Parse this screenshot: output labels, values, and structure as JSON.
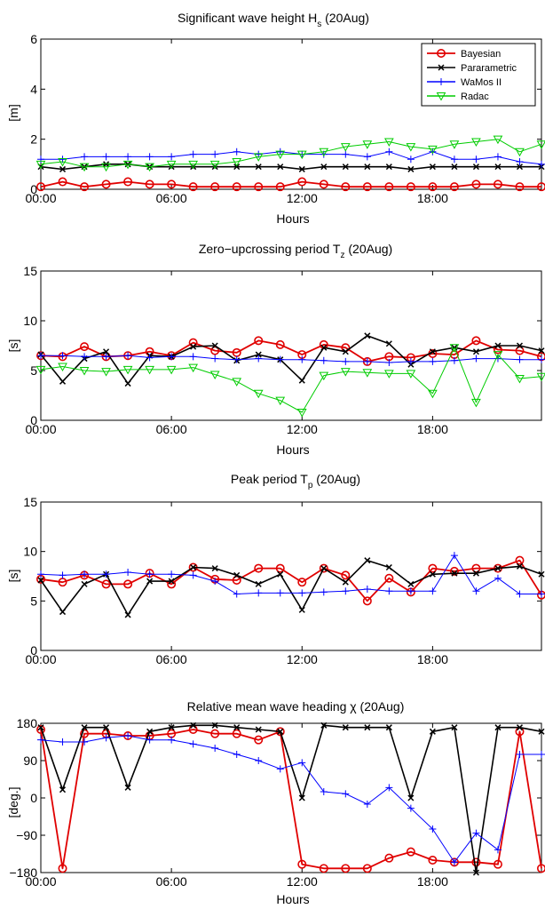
{
  "colors": {
    "bayesian": "#e00000",
    "parametric": "#000000",
    "wamos": "#0000ff",
    "radac": "#00cc00"
  },
  "chart_data": [
    {
      "type": "line",
      "title": "Significant wave height H",
      "title_sub": "s",
      "title_suffix": " (20Aug)",
      "xlabel": "Hours",
      "ylabel": "[m]",
      "ylim": [
        0,
        6
      ],
      "yticks": [
        0,
        2,
        4,
        6
      ],
      "yticklabels": [
        "0",
        "2",
        "4",
        "6"
      ],
      "xlim": [
        0,
        23
      ],
      "xticks": [
        0,
        6,
        12,
        18
      ],
      "xticklabels": [
        "00:00",
        "06:00",
        "12:00",
        "18:00"
      ],
      "grid": false,
      "legend": {
        "position": "top-right",
        "entries": [
          "Bayesian",
          "Pararametric",
          "WaMos II",
          "Radac"
        ]
      },
      "x": [
        0,
        1,
        2,
        3,
        4,
        5,
        6,
        7,
        8,
        9,
        10,
        11,
        12,
        13,
        14,
        15,
        16,
        17,
        18,
        19,
        20,
        21,
        22,
        23
      ],
      "series": [
        {
          "name": "Bayesian",
          "marker": "circle",
          "values": [
            0.1,
            0.3,
            0.1,
            0.2,
            0.3,
            0.2,
            0.2,
            0.1,
            0.1,
            0.1,
            0.1,
            0.1,
            0.3,
            0.2,
            0.1,
            0.1,
            0.1,
            0.1,
            0.1,
            0.1,
            0.2,
            0.2,
            0.1,
            0.1
          ]
        },
        {
          "name": "Pararametric",
          "marker": "x",
          "values": [
            0.9,
            0.8,
            0.9,
            1.0,
            1.0,
            0.9,
            0.9,
            0.9,
            0.9,
            0.9,
            0.9,
            0.9,
            0.8,
            0.9,
            0.9,
            0.9,
            0.9,
            0.8,
            0.9,
            0.9,
            0.9,
            0.9,
            0.9,
            0.9
          ]
        },
        {
          "name": "WaMos II",
          "marker": "plus",
          "values": [
            1.2,
            1.2,
            1.3,
            1.3,
            1.3,
            1.3,
            1.3,
            1.4,
            1.4,
            1.5,
            1.4,
            1.5,
            1.4,
            1.4,
            1.4,
            1.3,
            1.5,
            1.2,
            1.5,
            1.2,
            1.2,
            1.3,
            1.1,
            1.0
          ]
        },
        {
          "name": "Radac",
          "marker": "triangle",
          "values": [
            1.0,
            1.1,
            0.9,
            0.9,
            1.0,
            0.9,
            1.0,
            1.0,
            1.0,
            1.1,
            1.3,
            1.4,
            1.4,
            1.5,
            1.7,
            1.8,
            1.9,
            1.7,
            1.6,
            1.8,
            1.9,
            2.0,
            1.5,
            1.8
          ]
        }
      ]
    },
    {
      "type": "line",
      "title": "Zero−upcrossing period T",
      "title_sub": "z",
      "title_suffix": " (20Aug)",
      "xlabel": "Hours",
      "ylabel": "[s]",
      "ylim": [
        0,
        15
      ],
      "yticks": [
        0,
        5,
        10,
        15
      ],
      "yticklabels": [
        "0",
        "5",
        "10",
        "15"
      ],
      "xlim": [
        0,
        23
      ],
      "xticks": [
        0,
        6,
        12,
        18
      ],
      "xticklabels": [
        "00:00",
        "06:00",
        "12:00",
        "18:00"
      ],
      "grid": false,
      "x": [
        0,
        1,
        2,
        3,
        4,
        5,
        6,
        7,
        8,
        9,
        10,
        11,
        12,
        13,
        14,
        15,
        16,
        17,
        18,
        19,
        20,
        21,
        22,
        23
      ],
      "series": [
        {
          "name": "Bayesian",
          "marker": "circle",
          "values": [
            6.5,
            6.4,
            7.4,
            6.4,
            6.5,
            6.9,
            6.5,
            7.8,
            7.0,
            6.8,
            8.0,
            7.6,
            6.6,
            7.6,
            7.3,
            5.9,
            6.4,
            6.3,
            6.7,
            6.6,
            8.0,
            7.1,
            7.0,
            6.4
          ]
        },
        {
          "name": "Pararametric",
          "marker": "x",
          "values": [
            6.6,
            3.9,
            6.2,
            6.9,
            3.7,
            6.5,
            6.4,
            7.4,
            7.5,
            6.0,
            6.6,
            6.1,
            4.0,
            7.3,
            6.9,
            8.5,
            7.7,
            5.6,
            6.9,
            7.3,
            6.9,
            7.5,
            7.5,
            7.0
          ]
        },
        {
          "name": "WaMos II",
          "marker": "plus",
          "values": [
            6.5,
            6.5,
            6.4,
            6.4,
            6.5,
            6.3,
            6.4,
            6.4,
            6.2,
            6.1,
            6.2,
            6.1,
            6.1,
            6.0,
            5.9,
            5.9,
            5.8,
            5.9,
            5.9,
            6.0,
            6.2,
            6.2,
            6.1,
            6.1
          ]
        },
        {
          "name": "Radac",
          "marker": "triangle",
          "values": [
            5.1,
            5.4,
            5.0,
            4.9,
            5.1,
            5.1,
            5.1,
            5.3,
            4.6,
            3.9,
            2.7,
            2.0,
            0.8,
            4.5,
            4.9,
            4.8,
            4.7,
            4.7,
            2.7,
            7.3,
            1.8,
            6.6,
            4.2,
            4.4
          ]
        }
      ]
    },
    {
      "type": "line",
      "title": "Peak period T",
      "title_sub": "p",
      "title_suffix": " (20Aug)",
      "xlabel": "",
      "ylabel": "[s]",
      "ylim": [
        0,
        15
      ],
      "yticks": [
        0,
        5,
        10,
        15
      ],
      "yticklabels": [
        "0",
        "5",
        "10",
        "15"
      ],
      "xlim": [
        0,
        23
      ],
      "xticks": [
        0,
        6,
        12,
        18
      ],
      "xticklabels": [
        "00:00",
        "06:00",
        "12:00",
        "18:00"
      ],
      "grid": false,
      "x": [
        0,
        1,
        2,
        3,
        4,
        5,
        6,
        7,
        8,
        9,
        10,
        11,
        12,
        13,
        14,
        15,
        16,
        17,
        18,
        19,
        20,
        21,
        22,
        23
      ],
      "series": [
        {
          "name": "Bayesian",
          "marker": "circle",
          "values": [
            7.2,
            6.9,
            7.6,
            6.7,
            6.7,
            7.8,
            6.7,
            8.4,
            7.2,
            7.1,
            8.3,
            8.3,
            6.9,
            8.3,
            7.6,
            5.0,
            7.3,
            5.9,
            8.3,
            8.0,
            8.3,
            8.3,
            9.1,
            5.6
          ]
        },
        {
          "name": "Pararametric",
          "marker": "x",
          "values": [
            7.1,
            3.9,
            6.7,
            7.7,
            3.6,
            7.0,
            7.0,
            8.4,
            8.3,
            7.6,
            6.7,
            7.7,
            4.1,
            8.3,
            6.9,
            9.1,
            8.4,
            6.7,
            7.7,
            7.8,
            7.8,
            8.3,
            8.5,
            7.7
          ]
        },
        {
          "name": "WaMos II",
          "marker": "plus",
          "values": [
            7.7,
            7.6,
            7.7,
            7.7,
            7.9,
            7.7,
            7.7,
            7.6,
            7.0,
            5.7,
            5.8,
            5.8,
            5.8,
            5.9,
            6.0,
            6.2,
            6.0,
            6.0,
            6.0,
            9.6,
            6.0,
            7.3,
            5.7,
            5.7
          ]
        }
      ]
    },
    {
      "type": "line",
      "title": "Relative mean wave heading χ (20Aug)",
      "title_sub": "",
      "title_suffix": "",
      "xlabel": "Hours",
      "ylabel": "[deg.]",
      "ylim": [
        -180,
        180
      ],
      "yticks": [
        -180,
        -90,
        0,
        90,
        180
      ],
      "yticklabels": [
        "−180",
        "−90",
        "0",
        "90",
        "180"
      ],
      "xlim": [
        0,
        23
      ],
      "xticks": [
        0,
        6,
        12,
        18
      ],
      "xticklabels": [
        "00:00",
        "06:00",
        "12:00",
        "18:00"
      ],
      "grid": false,
      "x": [
        0,
        1,
        2,
        3,
        4,
        5,
        6,
        7,
        8,
        9,
        10,
        11,
        12,
        13,
        14,
        15,
        16,
        17,
        18,
        19,
        20,
        21,
        22,
        23
      ],
      "series": [
        {
          "name": "Bayesian",
          "marker": "circle",
          "values": [
            165,
            -170,
            155,
            155,
            150,
            150,
            155,
            165,
            155,
            155,
            140,
            160,
            -160,
            -170,
            -170,
            -170,
            -145,
            -130,
            -150,
            -155,
            -155,
            -160,
            160,
            -170
          ]
        },
        {
          "name": "Pararametric",
          "marker": "x",
          "values": [
            170,
            20,
            170,
            170,
            25,
            160,
            170,
            175,
            175,
            170,
            165,
            160,
            0,
            175,
            170,
            170,
            170,
            0,
            160,
            170,
            -180,
            170,
            170,
            160
          ]
        },
        {
          "name": "WaMos II",
          "marker": "plus",
          "values": [
            140,
            135,
            135,
            145,
            150,
            140,
            140,
            130,
            120,
            105,
            90,
            70,
            85,
            15,
            10,
            -15,
            25,
            -25,
            -75,
            -155,
            -85,
            -125,
            105,
            105
          ]
        }
      ]
    }
  ]
}
